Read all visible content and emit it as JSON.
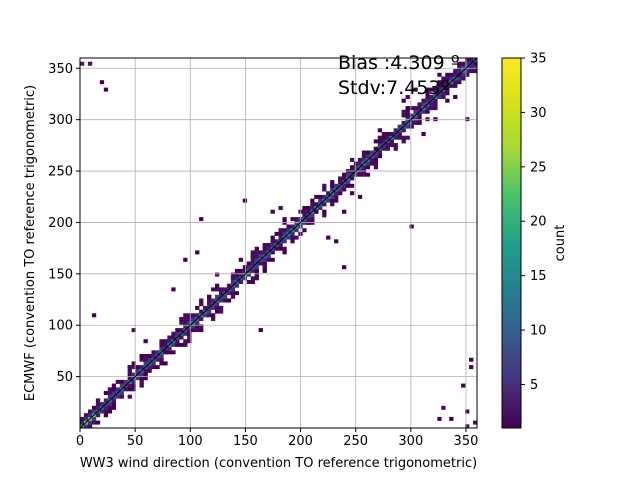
{
  "chart_data": {
    "type": "heatmap",
    "title": "",
    "xlabel": "WW3 wind direction (convention TO reference trigonometric)",
    "ylabel": "ECMWF (convention TO reference trigonometric)",
    "xlim": [
      0,
      360
    ],
    "ylim": [
      0,
      360
    ],
    "x_ticks": [
      0,
      50,
      100,
      150,
      200,
      250,
      300,
      350
    ],
    "y_ticks": [
      50,
      100,
      150,
      200,
      250,
      300,
      350
    ],
    "grid": true,
    "bin_size": 3.6,
    "colormap": "viridis",
    "colorbar": {
      "label": "count",
      "min": 1,
      "max": 35,
      "ticks": [
        5,
        10,
        15,
        20,
        25,
        30,
        35
      ]
    },
    "annotations": [
      "Bias :4.309 º",
      "Stdv:7.453º"
    ],
    "reference_line": {
      "x": [
        0,
        360
      ],
      "y": [
        0,
        360
      ]
    },
    "off_diagonal_cells": [
      [
        2,
        354,
        3
      ],
      [
        8,
        353,
        2
      ],
      [
        20,
        335,
        1
      ],
      [
        24,
        328,
        1
      ],
      [
        12,
        110,
        1
      ],
      [
        45,
        60,
        2
      ],
      [
        48,
        95,
        1
      ],
      [
        60,
        85,
        1
      ],
      [
        78,
        72,
        1
      ],
      [
        85,
        135,
        1
      ],
      [
        95,
        163,
        1
      ],
      [
        105,
        170,
        1
      ],
      [
        108,
        205,
        1
      ],
      [
        118,
        127,
        1
      ],
      [
        125,
        150,
        2
      ],
      [
        145,
        165,
        1
      ],
      [
        155,
        168,
        2
      ],
      [
        148,
        220,
        1
      ],
      [
        165,
        95,
        1
      ],
      [
        168,
        155,
        2
      ],
      [
        176,
        210,
        1
      ],
      [
        180,
        213,
        2
      ],
      [
        186,
        205,
        1
      ],
      [
        206,
        200,
        2
      ],
      [
        215,
        210,
        1
      ],
      [
        225,
        185,
        1
      ],
      [
        232,
        180,
        1
      ],
      [
        238,
        155,
        1
      ],
      [
        240,
        212,
        1
      ],
      [
        248,
        230,
        1
      ],
      [
        252,
        225,
        1
      ],
      [
        262,
        245,
        1
      ],
      [
        268,
        270,
        1
      ],
      [
        272,
        290,
        1
      ],
      [
        280,
        275,
        2
      ],
      [
        292,
        320,
        1
      ],
      [
        298,
        322,
        2
      ],
      [
        305,
        330,
        1
      ],
      [
        300,
        195,
        1
      ],
      [
        310,
        285,
        1
      ],
      [
        318,
        330,
        1
      ],
      [
        322,
        300,
        1
      ],
      [
        325,
        345,
        1
      ],
      [
        332,
        332,
        2
      ],
      [
        340,
        322,
        1
      ],
      [
        350,
        300,
        1
      ],
      [
        344,
        345,
        2
      ],
      [
        352,
        348,
        4
      ],
      [
        354,
        356,
        6
      ],
      [
        358,
        352,
        5
      ],
      [
        355,
        60,
        1
      ],
      [
        353,
        68,
        1
      ],
      [
        348,
        40,
        1
      ],
      [
        350,
        15,
        1
      ],
      [
        352,
        3,
        3
      ],
      [
        357,
        5,
        2
      ],
      [
        338,
        10,
        1
      ],
      [
        325,
        8,
        1
      ],
      [
        330,
        20,
        2
      ]
    ]
  }
}
